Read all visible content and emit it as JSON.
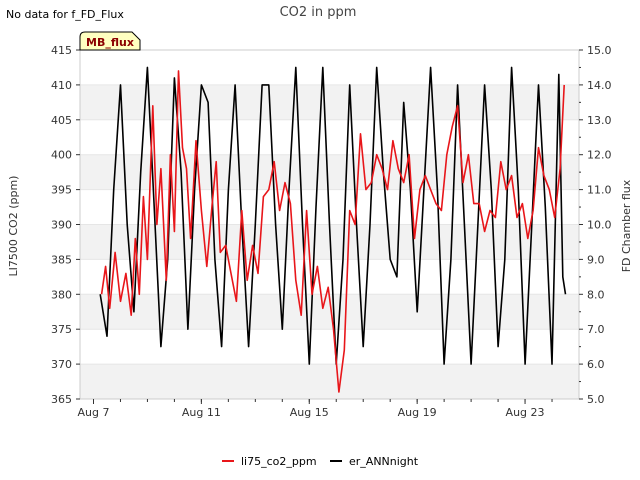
{
  "note": "No data for f_FD_Flux",
  "badge": "MB_flux",
  "colors": {
    "co2": "#e8161a",
    "ann": "#000000",
    "band": "#f2f2f2",
    "badge_fill": "#ffffc0"
  },
  "chart_data": {
    "type": "line",
    "title": "CO2 in ppm",
    "xlabel": "",
    "ylabel": "LI7500 CO2 (ppm)",
    "y2label": "FD Chamber flux",
    "xlim": [
      6.5,
      25.0
    ],
    "ylim": [
      365,
      415
    ],
    "y2lim": [
      5.0,
      15.0
    ],
    "x_ticks": [
      7,
      11,
      15,
      19,
      23
    ],
    "x_tick_labels": [
      "Aug 7",
      "Aug 11",
      "Aug 15",
      "Aug 19",
      "Aug 23"
    ],
    "y_ticks": [
      365,
      370,
      375,
      380,
      385,
      390,
      395,
      400,
      405,
      410,
      415
    ],
    "y2_ticks": [
      5.0,
      6.0,
      7.0,
      8.0,
      9.0,
      10.0,
      11.0,
      12.0,
      13.0,
      14.0,
      15.0
    ],
    "y2_tick_labels": [
      "5.0",
      "6.0",
      "7.0",
      "8.0",
      "9.0",
      "10.0",
      "11.0",
      "12.0",
      "13.0",
      "14.0",
      "15.0"
    ],
    "legend": [
      "li75_co2_ppm",
      "er_ANNnight"
    ],
    "series": [
      {
        "name": "li75_co2_ppm",
        "axis": "left",
        "color": "#e8161a",
        "x": [
          7.3,
          7.45,
          7.6,
          7.8,
          8.0,
          8.2,
          8.4,
          8.55,
          8.7,
          8.85,
          9.0,
          9.2,
          9.35,
          9.5,
          9.7,
          9.85,
          10.0,
          10.15,
          10.3,
          10.45,
          10.6,
          10.8,
          11.0,
          11.2,
          11.4,
          11.55,
          11.7,
          11.9,
          12.1,
          12.3,
          12.5,
          12.7,
          12.9,
          13.1,
          13.3,
          13.5,
          13.7,
          13.9,
          14.1,
          14.3,
          14.5,
          14.7,
          14.9,
          15.1,
          15.3,
          15.5,
          15.7,
          15.9,
          16.1,
          16.3,
          16.5,
          16.7,
          16.9,
          17.1,
          17.3,
          17.5,
          17.7,
          17.9,
          18.1,
          18.3,
          18.5,
          18.7,
          18.9,
          19.1,
          19.3,
          19.5,
          19.7,
          19.9,
          20.1,
          20.3,
          20.5,
          20.7,
          20.9,
          21.1,
          21.3,
          21.5,
          21.7,
          21.9,
          22.1,
          22.3,
          22.5,
          22.7,
          22.9,
          23.1,
          23.3,
          23.5,
          23.7,
          23.9,
          24.1,
          24.3,
          24.45
        ],
        "values": [
          380,
          384,
          378,
          386,
          379,
          383,
          377,
          388,
          380,
          394,
          385,
          407,
          390,
          398,
          382,
          400,
          389,
          412,
          401,
          398,
          388,
          402,
          392,
          384,
          393,
          399,
          386,
          387,
          383,
          379,
          392,
          382,
          387,
          383,
          394,
          395,
          399,
          392,
          396,
          393,
          382,
          377,
          392,
          380,
          384,
          378,
          381,
          375,
          366,
          372,
          392,
          390,
          403,
          395,
          396,
          400,
          398,
          395,
          402,
          398,
          396,
          400,
          388,
          395,
          397,
          395,
          393,
          392,
          400,
          404,
          407,
          396,
          400,
          393,
          393,
          389,
          392,
          391,
          399,
          395,
          397,
          391,
          393,
          388,
          392,
          401,
          397,
          395,
          391,
          398,
          410
        ]
      },
      {
        "name": "er_ANNnight",
        "axis": "right",
        "color": "#000000",
        "x": [
          7.25,
          7.5,
          7.75,
          8.0,
          8.25,
          8.5,
          8.75,
          9.0,
          9.25,
          9.5,
          9.75,
          10.0,
          10.25,
          10.5,
          10.75,
          11.0,
          11.25,
          11.5,
          11.75,
          12.0,
          12.25,
          12.5,
          12.75,
          13.0,
          13.25,
          13.5,
          13.75,
          14.0,
          14.25,
          14.5,
          14.75,
          15.0,
          15.25,
          15.5,
          15.75,
          16.0,
          16.25,
          16.5,
          16.75,
          17.0,
          17.25,
          17.5,
          17.75,
          18.0,
          18.25,
          18.5,
          18.75,
          19.0,
          19.25,
          19.5,
          19.75,
          20.0,
          20.25,
          20.5,
          20.75,
          21.0,
          21.25,
          21.5,
          21.75,
          22.0,
          22.25,
          22.5,
          22.75,
          23.0,
          23.25,
          23.5,
          23.75,
          24.0,
          24.25,
          24.4,
          24.5
        ],
        "values": [
          8.0,
          6.8,
          11.0,
          14.0,
          10.0,
          7.5,
          11.5,
          14.5,
          10.5,
          6.5,
          9.0,
          14.2,
          11.5,
          7.0,
          11.0,
          14.0,
          13.5,
          9.0,
          6.5,
          11.0,
          14.0,
          10.0,
          6.5,
          10.0,
          14.0,
          14.0,
          10.0,
          7.0,
          11.0,
          14.5,
          10.0,
          6.0,
          10.5,
          14.5,
          10.0,
          6.0,
          9.0,
          14.0,
          10.0,
          6.5,
          10.0,
          14.5,
          11.5,
          9.0,
          8.5,
          13.5,
          11.0,
          7.5,
          11.0,
          14.5,
          11.0,
          6.0,
          9.0,
          14.0,
          10.0,
          6.0,
          10.0,
          14.0,
          11.0,
          6.5,
          9.0,
          14.5,
          11.0,
          6.0,
          10.0,
          14.0,
          10.5,
          6.0,
          14.3,
          8.5,
          8.0
        ]
      }
    ]
  }
}
